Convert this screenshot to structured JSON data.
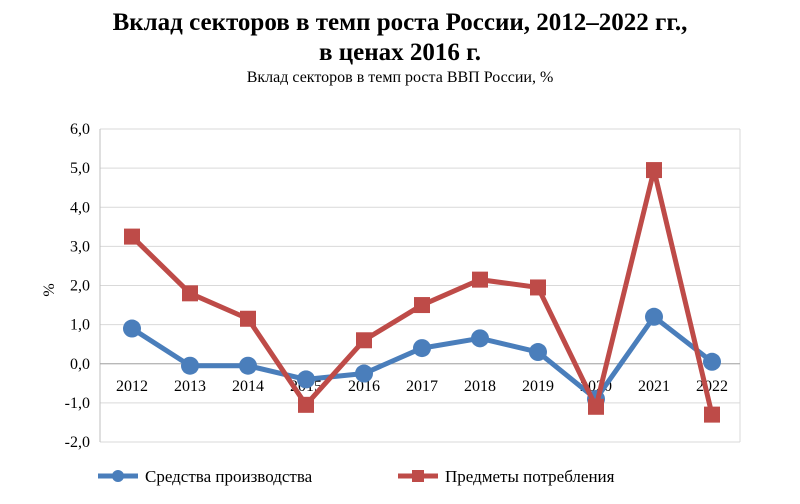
{
  "header": {
    "title_line1": "Вклад секторов в темп роста России, 2012–2022 гг.,",
    "title_line2": "в ценах 2016 г.",
    "subtitle": "Вклад секторов в темп роста ВВП России, %"
  },
  "chart_data": {
    "type": "line",
    "title": "Вклад секторов в темп роста России, 2012–2022 гг., в ценах 2016 г.",
    "subtitle": "Вклад секторов в темп роста ВВП России, %",
    "xlabel": "",
    "ylabel": "%",
    "categories": [
      "2012",
      "2013",
      "2014",
      "2015",
      "2016",
      "2017",
      "2018",
      "2019",
      "2020",
      "2021",
      "2022"
    ],
    "ylim": [
      -2.0,
      6.0
    ],
    "yticks": [
      "-2,0",
      "-1,0",
      "0,0",
      "1,0",
      "2,0",
      "3,0",
      "4,0",
      "5,0",
      "6,0"
    ],
    "grid": true,
    "legend_position": "bottom",
    "series": [
      {
        "name": "Средства производства",
        "color": "#4A7EBB",
        "marker": "circle",
        "values": [
          0.9,
          -0.05,
          -0.05,
          -0.4,
          -0.25,
          0.4,
          0.65,
          0.3,
          -0.9,
          1.2,
          0.05
        ]
      },
      {
        "name": "Предметы потребления",
        "color": "#BE4B48",
        "marker": "square",
        "values": [
          3.25,
          1.8,
          1.15,
          -1.05,
          0.6,
          1.5,
          2.15,
          1.95,
          -1.1,
          4.95,
          -1.3
        ]
      }
    ]
  }
}
